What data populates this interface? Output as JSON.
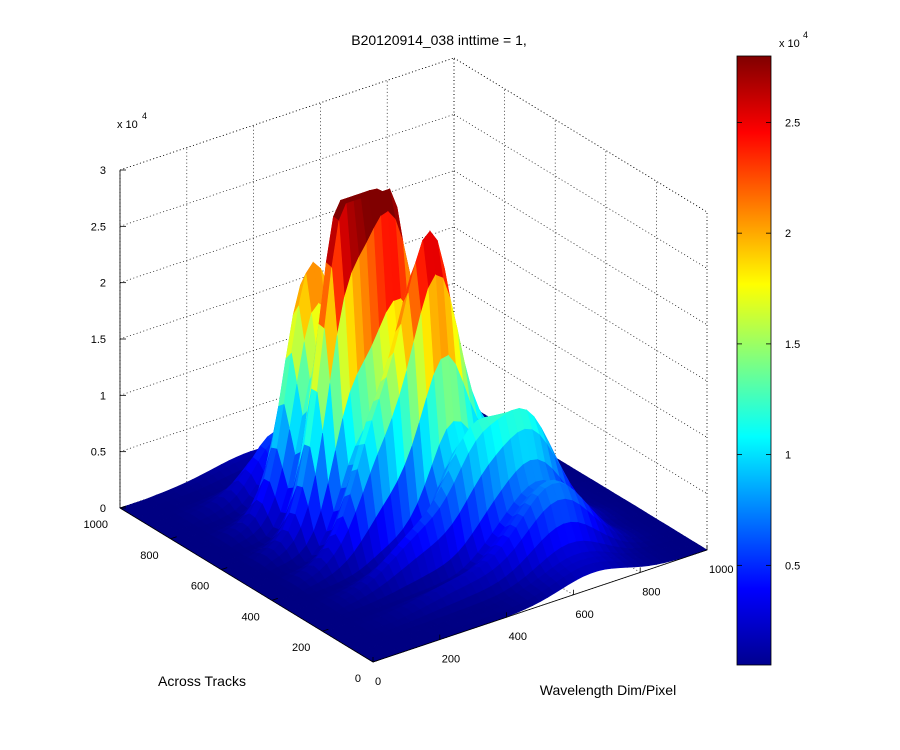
{
  "chart_data": {
    "type": "surface3d",
    "title": "B20120914_038 inttime = 1,",
    "xlabel": "Wavelength Dim/Pixel",
    "ylabel": "Across Tracks",
    "zlabel": "",
    "xlim": [
      0,
      1000
    ],
    "ylim": [
      0,
      1000
    ],
    "zlim": [
      0,
      30000
    ],
    "x_ticks": [
      0,
      200,
      400,
      600,
      800,
      1000
    ],
    "y_ticks": [
      0,
      200,
      400,
      600,
      800,
      1000
    ],
    "z_ticks": [
      0,
      0.5,
      1,
      1.5,
      2,
      2.5,
      3
    ],
    "z_exponent": "x 10",
    "z_exponent_power": "4",
    "colormap": "jet",
    "grid": true,
    "colorbar": {
      "location": "right",
      "range": [
        500,
        28000
      ],
      "ticks": [
        0.5,
        1,
        1.5,
        2,
        2.5
      ],
      "exponent": "x 10",
      "exponent_power": "4"
    },
    "peaks": [
      {
        "x": 330,
        "y": 620,
        "z": 29000
      },
      {
        "x": 440,
        "y": 560,
        "z": 24000
      },
      {
        "x": 520,
        "y": 470,
        "z": 23500
      },
      {
        "x": 660,
        "y": 290,
        "z": 16000
      }
    ],
    "tick_labels": {
      "x": [
        "0",
        "200",
        "400",
        "600",
        "800",
        "1000"
      ],
      "y": [
        "0",
        "200",
        "400",
        "600",
        "800",
        "1000"
      ],
      "z": [
        "0",
        "0.5",
        "1",
        "1.5",
        "2",
        "2.5",
        "3"
      ],
      "colorbar": [
        "0.5",
        "1",
        "1.5",
        "2",
        "2.5"
      ]
    }
  }
}
